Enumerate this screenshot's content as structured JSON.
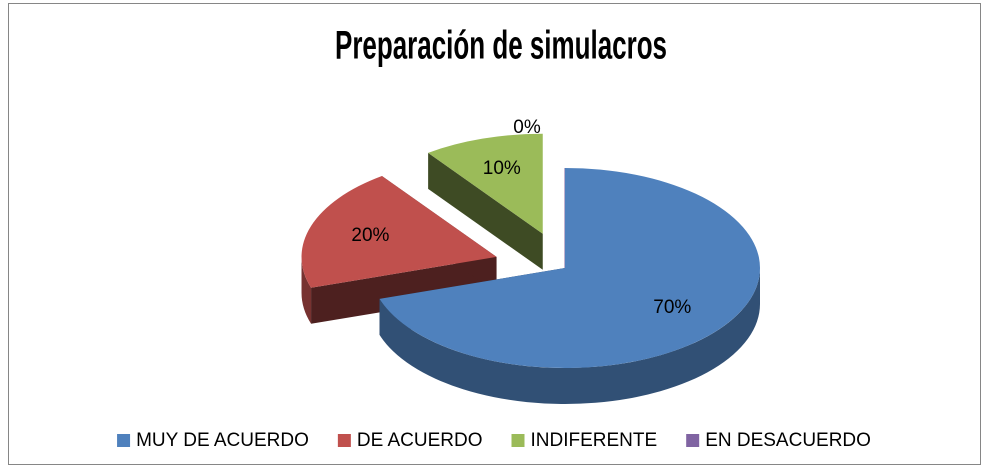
{
  "chart_data": {
    "type": "pie",
    "title": "Preparación de simulacros",
    "categories": [
      "MUY DE ACUERDO",
      "DE ACUERDO",
      "INDIFERENTE",
      "EN DESACUERDO"
    ],
    "values": [
      70,
      20,
      10,
      0
    ],
    "value_labels": [
      "70%",
      "20%",
      "10%",
      "0%"
    ],
    "colors": [
      "#4f81bd",
      "#c0504d",
      "#9bbb59",
      "#8064a2"
    ],
    "legend": "bottom"
  }
}
